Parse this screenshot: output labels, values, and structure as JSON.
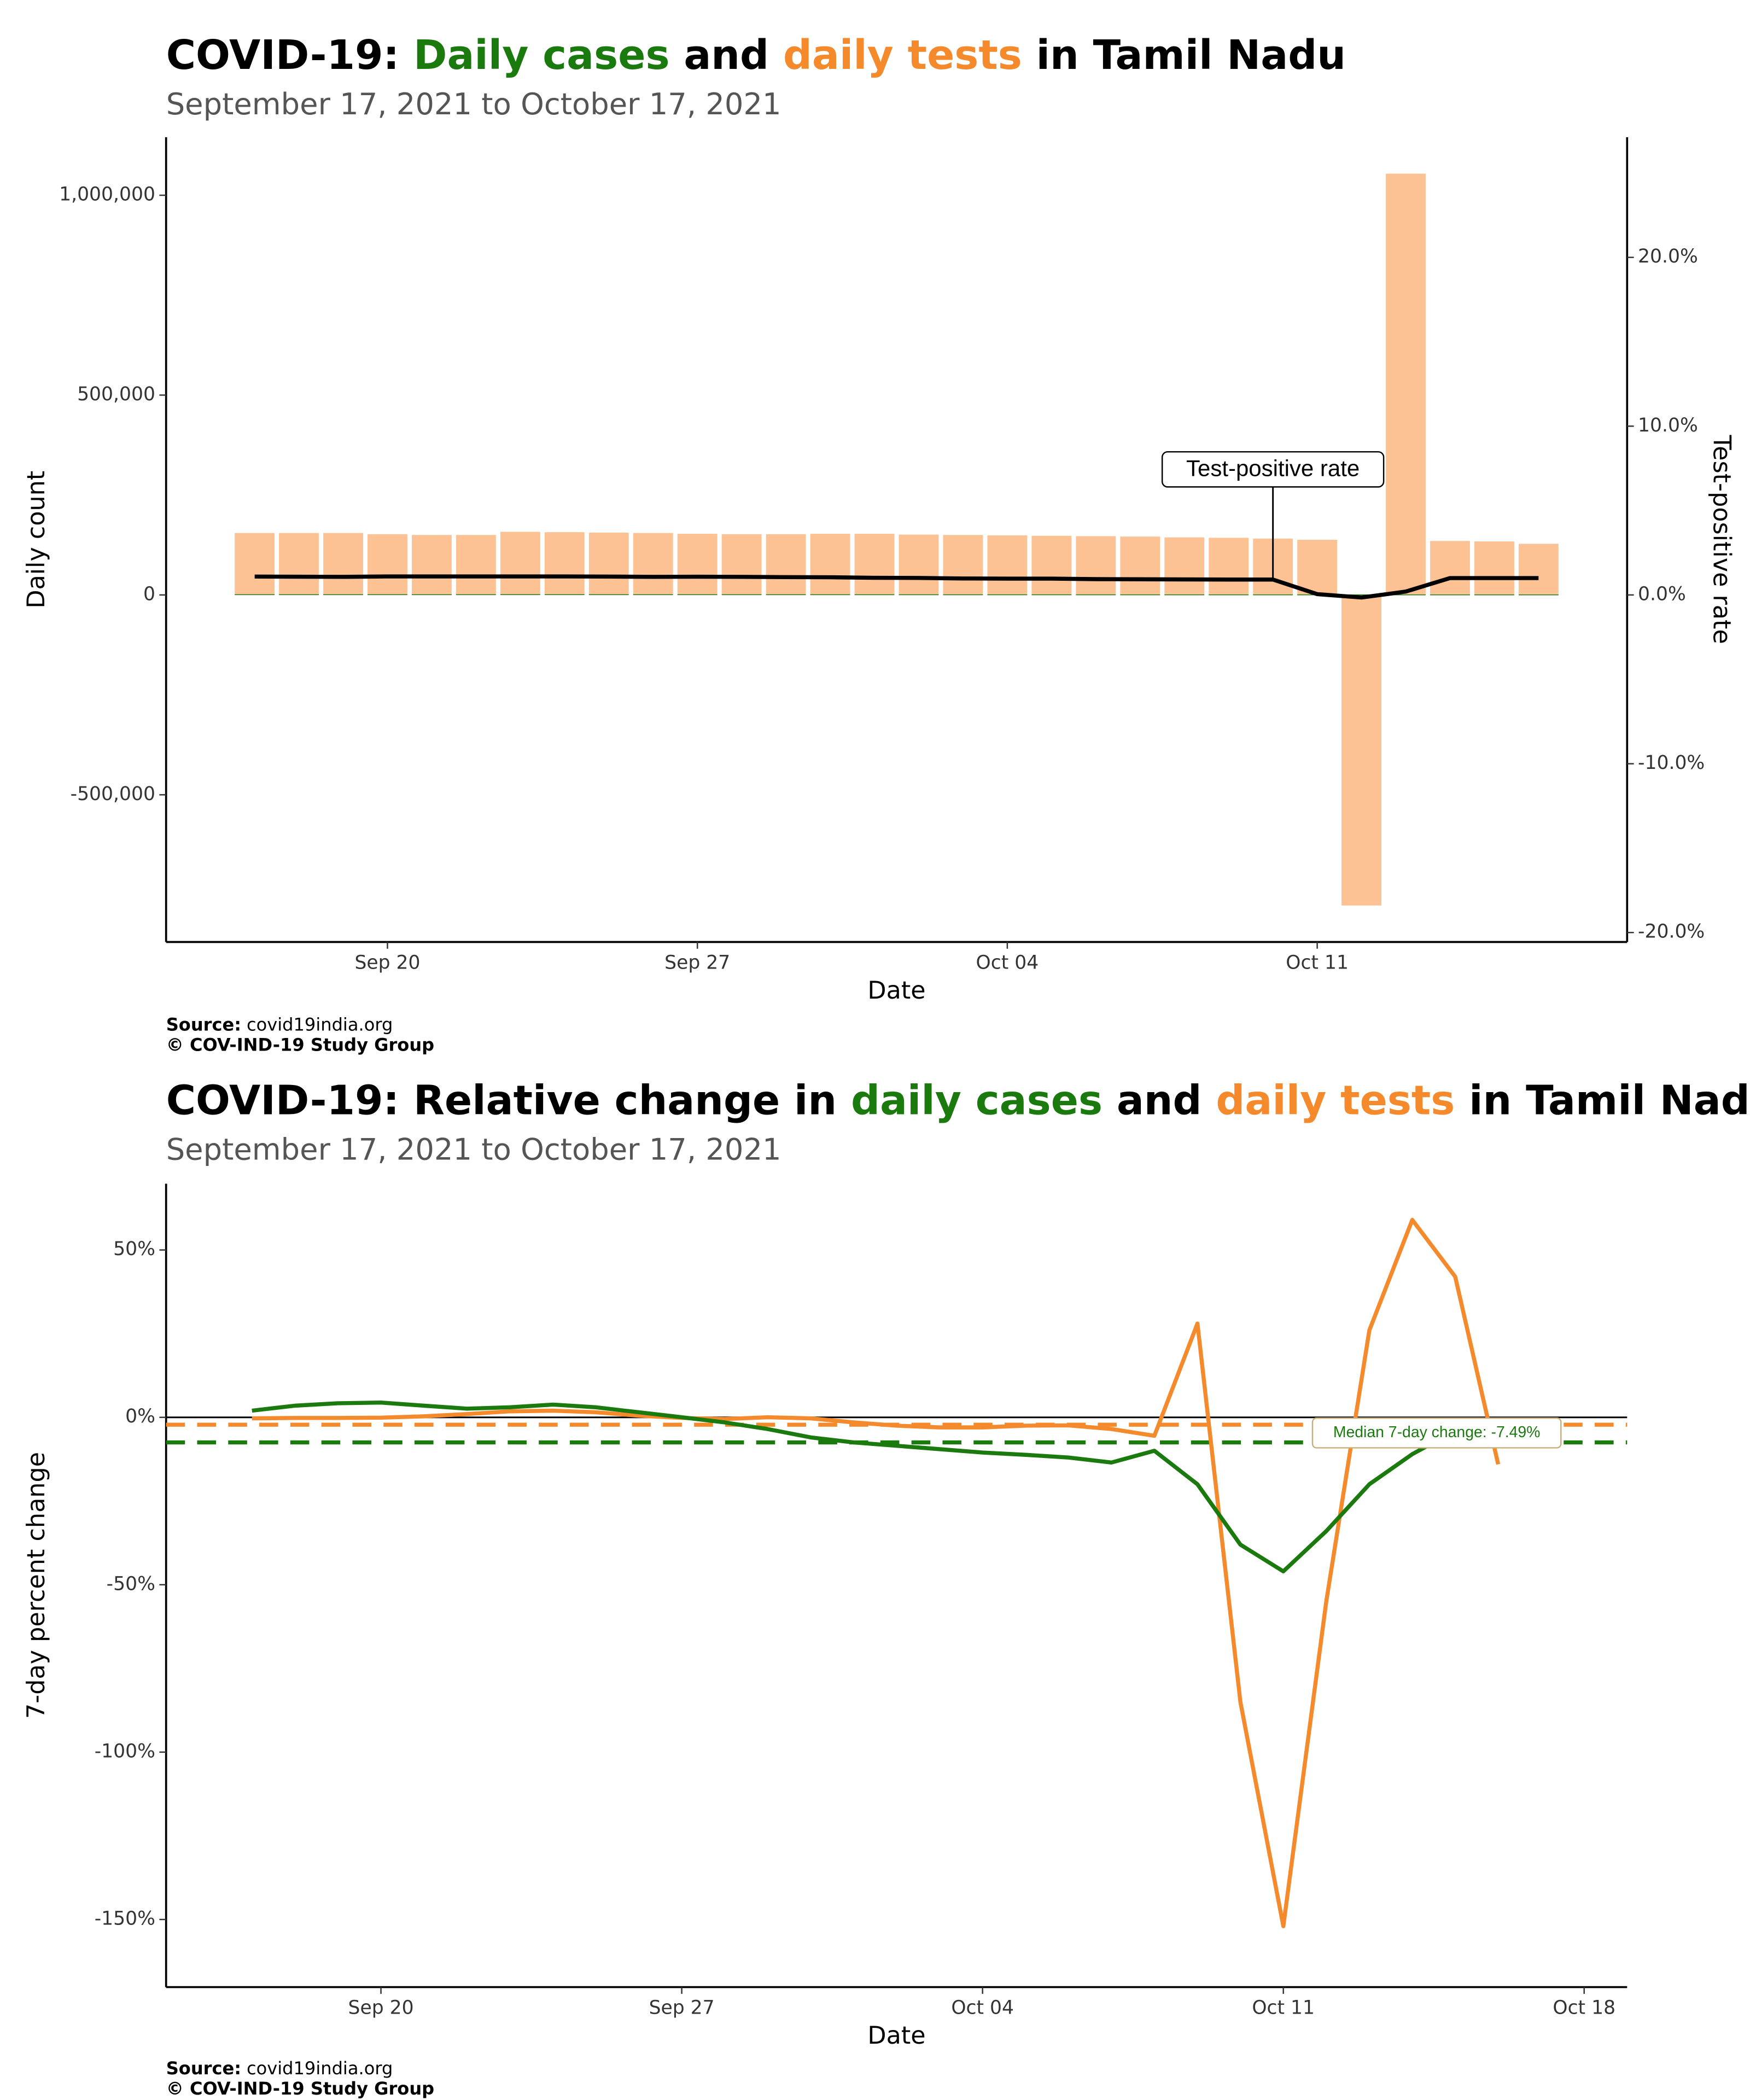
{
  "chart_data": [
    {
      "type": "bar",
      "title": [
        {
          "text": "COVID-19: ",
          "color": "#000000"
        },
        {
          "text": "Daily cases",
          "color": "#1b7a0e"
        },
        {
          "text": " and ",
          "color": "#000000"
        },
        {
          "text": "daily tests",
          "color": "#f58a2c"
        },
        {
          "text": " in Tamil Nadu",
          "color": "#000000"
        }
      ],
      "subtitle": "September 17, 2021 to October 17, 2021",
      "x_label": "Date",
      "y_label": "Daily count",
      "y2_label": "Test-positive rate",
      "x": [
        "Sep 17",
        "Sep 18",
        "Sep 19",
        "Sep 20",
        "Sep 21",
        "Sep 22",
        "Sep 23",
        "Sep 24",
        "Sep 25",
        "Sep 26",
        "Sep 27",
        "Sep 28",
        "Sep 29",
        "Sep 30",
        "Oct 01",
        "Oct 02",
        "Oct 03",
        "Oct 04",
        "Oct 05",
        "Oct 06",
        "Oct 07",
        "Oct 08",
        "Oct 09",
        "Oct 10",
        "Oct 11",
        "Oct 12",
        "Oct 13",
        "Oct 14",
        "Oct 15",
        "Oct 16"
      ],
      "series": [
        {
          "type": "bar",
          "color": "#fdc294",
          "values": [
            155000,
            155000,
            155000,
            152000,
            150000,
            150000,
            158000,
            157000,
            156000,
            155000,
            153000,
            152000,
            152000,
            153000,
            153000,
            151000,
            150000,
            149000,
            148000,
            147000,
            146000,
            144000,
            143000,
            141000,
            138000,
            -777000,
            1054000,
            135000,
            134000,
            128000
          ]
        },
        {
          "type": "bar",
          "color": "#1b7a0e",
          "values": [
            1693,
            1667,
            1653,
            1697,
            1661,
            1647,
            1745,
            1733,
            1694,
            1657,
            1657,
            1624,
            1608,
            1599,
            1568,
            1531,
            1473,
            1449,
            1433,
            1385,
            1359,
            1329,
            1303,
            1280,
            1259,
            1245,
            1233,
            1218,
            1234,
            1218
          ]
        },
        {
          "type": "line",
          "axis": "y2",
          "color": "#000000",
          "values": [
            1.09,
            1.08,
            1.07,
            1.1,
            1.1,
            1.1,
            1.1,
            1.1,
            1.09,
            1.07,
            1.08,
            1.07,
            1.06,
            1.05,
            1.02,
            1.01,
            0.98,
            0.97,
            0.97,
            0.94,
            0.93,
            0.92,
            0.91,
            0.91,
            0.05,
            -0.15,
            0.2,
            1.0,
            1.0,
            1.0
          ]
        }
      ],
      "xlim": [
        "Sep 15",
        "Oct 18"
      ],
      "xticks": [
        "Sep 20",
        "Sep 27",
        "Oct 04",
        "Oct 11"
      ],
      "ylim": [
        -868243,
        1145270
      ],
      "yticks": [
        {
          "value": -500000,
          "label": "-500,000"
        },
        0,
        {
          "value": 500000,
          "label": "500,000"
        },
        {
          "value": 1000000,
          "label": "1,000,000"
        }
      ],
      "y2lim": [
        -20.56,
        27.12
      ],
      "y2ticks": [
        {
          "value": -20,
          "label": "-20.0%"
        },
        {
          "value": -10,
          "label": "-10.0%"
        },
        {
          "value": 0,
          "label": "0.0%"
        },
        {
          "value": 10,
          "label": "10.0%"
        },
        {
          "value": 20,
          "label": "20.0%"
        }
      ],
      "annotation": {
        "text": "Test-positive rate",
        "x": "Oct 10"
      },
      "source_label": "Source:",
      "source": "covid19india.org",
      "copyright": "© COV-IND-19 Study Group"
    },
    {
      "type": "line",
      "title": [
        {
          "text": "COVID-19: Relative change in ",
          "color": "#000000"
        },
        {
          "text": "daily cases",
          "color": "#1b7a0e"
        },
        {
          "text": " and ",
          "color": "#000000"
        },
        {
          "text": "daily tests",
          "color": "#f58a2c"
        },
        {
          "text": " in Tamil Nadu",
          "color": "#000000"
        }
      ],
      "subtitle": "September 17, 2021 to October 17, 2021",
      "x_label": "Date",
      "y_label": "7-day percent change",
      "x": [
        "Sep 17",
        "Sep 18",
        "Sep 19",
        "Sep 20",
        "Sep 21",
        "Sep 22",
        "Sep 23",
        "Sep 24",
        "Sep 25",
        "Sep 26",
        "Sep 27",
        "Sep 28",
        "Sep 29",
        "Sep 30",
        "Oct 01",
        "Oct 02",
        "Oct 03",
        "Oct 04",
        "Oct 05",
        "Oct 06",
        "Oct 07",
        "Oct 08",
        "Oct 09",
        "Oct 10",
        "Oct 11",
        "Oct 12",
        "Oct 13",
        "Oct 14",
        "Oct 15",
        "Oct 16"
      ],
      "series": [
        {
          "type": "line",
          "color": "#f58a2c",
          "values": [
            -0.3,
            -0.2,
            -0.2,
            -0.1,
            0.3,
            1,
            1.8,
            2,
            1.5,
            0.5,
            -0.2,
            -0.5,
            0,
            -0.3,
            -1.5,
            -2.5,
            -3,
            -3,
            -2.5,
            -2.4,
            -3.5,
            -5.5,
            28,
            -85,
            -152,
            -55,
            26,
            59,
            42,
            -14
          ]
        },
        {
          "type": "line",
          "color": "#1b7a0e",
          "values": [
            2,
            3.5,
            4.2,
            4.4,
            3.5,
            2.6,
            3,
            3.8,
            3,
            1.5,
            0,
            -1.5,
            -3.5,
            -6,
            -7.5,
            -8.5,
            -9.5,
            -10.5,
            -11.2,
            -12,
            -13.5,
            -10,
            -20,
            -38,
            -46,
            -34,
            -20,
            -11,
            -4,
            null
          ]
        }
      ],
      "hlines": [
        {
          "value": 0,
          "color": "#000000",
          "dash": false
        },
        {
          "value": -2.2,
          "color": "#f58a2c",
          "dash": true
        },
        {
          "value": -7.49,
          "color": "#1b7a0e",
          "dash": true
        }
      ],
      "xlim": [
        "Sep 15",
        "Oct 19"
      ],
      "xticks": [
        "Sep 20",
        "Sep 27",
        "Oct 04",
        "Oct 11",
        "Oct 18"
      ],
      "ylim": [
        -170.2,
        69.8
      ],
      "yticks": [
        {
          "value": -150,
          "label": "-150%"
        },
        {
          "value": -100,
          "label": "-100%"
        },
        {
          "value": -50,
          "label": "-50%"
        },
        {
          "value": 0,
          "label": "0%"
        },
        {
          "value": 50,
          "label": "50%"
        }
      ],
      "annotation": {
        "text": "Median 7-day change: -7.49%",
        "color": "#1b7a0e",
        "value": -7.49
      },
      "source_label": "Source:",
      "source": "covid19india.org",
      "copyright": "© COV-IND-19 Study Group"
    }
  ]
}
